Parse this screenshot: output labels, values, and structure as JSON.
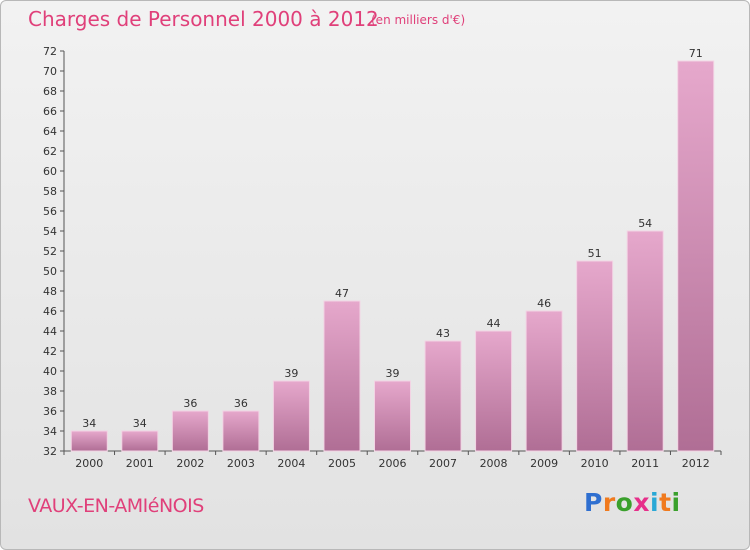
{
  "header": {
    "title": "Charges de Personnel 2000 à 2012",
    "subtitle": "(en milliers d'€)"
  },
  "footer": {
    "commune": "VAUX-EN-AMIéNOIS",
    "logo_letters": [
      "P",
      "r",
      "o",
      "x",
      "i",
      "t",
      "i"
    ],
    "logo_colors": [
      "#2f6fd0",
      "#f07a1e",
      "#3aa02c",
      "#e62f8a",
      "#29a8d6",
      "#f07a1e",
      "#3aa02c"
    ]
  },
  "colors": {
    "accent": "#e0407a",
    "bar_top": "#e6a8cc",
    "bar_bottom": "#b06e95"
  },
  "chart_data": {
    "type": "bar",
    "title": "Charges de Personnel 2000 à 2012",
    "subtitle": "(en milliers d'€)",
    "categories": [
      "2000",
      "2001",
      "2002",
      "2003",
      "2004",
      "2005",
      "2006",
      "2007",
      "2008",
      "2009",
      "2010",
      "2011",
      "2012"
    ],
    "values": [
      34,
      34,
      36,
      36,
      39,
      47,
      39,
      43,
      44,
      46,
      51,
      54,
      71
    ],
    "ylim": [
      32,
      72
    ],
    "yticks": [
      32,
      34,
      36,
      38,
      40,
      42,
      44,
      46,
      48,
      50,
      52,
      54,
      56,
      58,
      60,
      62,
      64,
      66,
      68,
      70,
      72
    ],
    "grid": false,
    "legend": "none"
  }
}
